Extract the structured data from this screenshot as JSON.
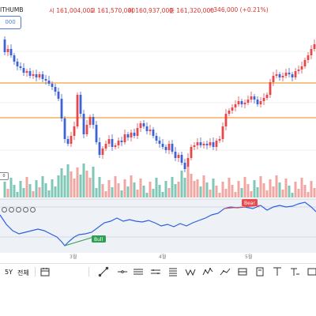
{
  "header": {
    "exchange_label": "ITHUMB",
    "open": "시 161,004,000",
    "high": "고 161,570,000",
    "low": "저 160,937,000",
    "close": "종 161,320,000",
    "change": "+346,000 (+0.21%)"
  },
  "price_axis_label": "000",
  "volume_axis_label": "0",
  "toolbar": {
    "period": "5Y",
    "scope": "전체"
  },
  "months": [
    "3월",
    "4월",
    "5월"
  ],
  "signals": {
    "bull": "Bull",
    "bear": "Bear"
  },
  "colors": {
    "up": "#e8474a",
    "down": "#3f63d6",
    "up_volume": "#f2a6a2",
    "neutral_volume": "#7fc7b6",
    "line_indicator": "#2f5fe0",
    "hline": "#f1a13a",
    "bull": "#2e9e52",
    "bear": "#e84b4b"
  },
  "tool_icons": [
    "calendar-icon",
    "trend-line-icon",
    "horizontal-line-icon",
    "horizontal-lines-icon",
    "parallel-channel-icon",
    "fibonacci-icon",
    "pattern-w-icon",
    "wave-icon",
    "path-icon",
    "projection-icon",
    "forecast-icon",
    "rectangle-icon",
    "ellipse-icon",
    "text-icon",
    "text-symbol-icon"
  ]
}
